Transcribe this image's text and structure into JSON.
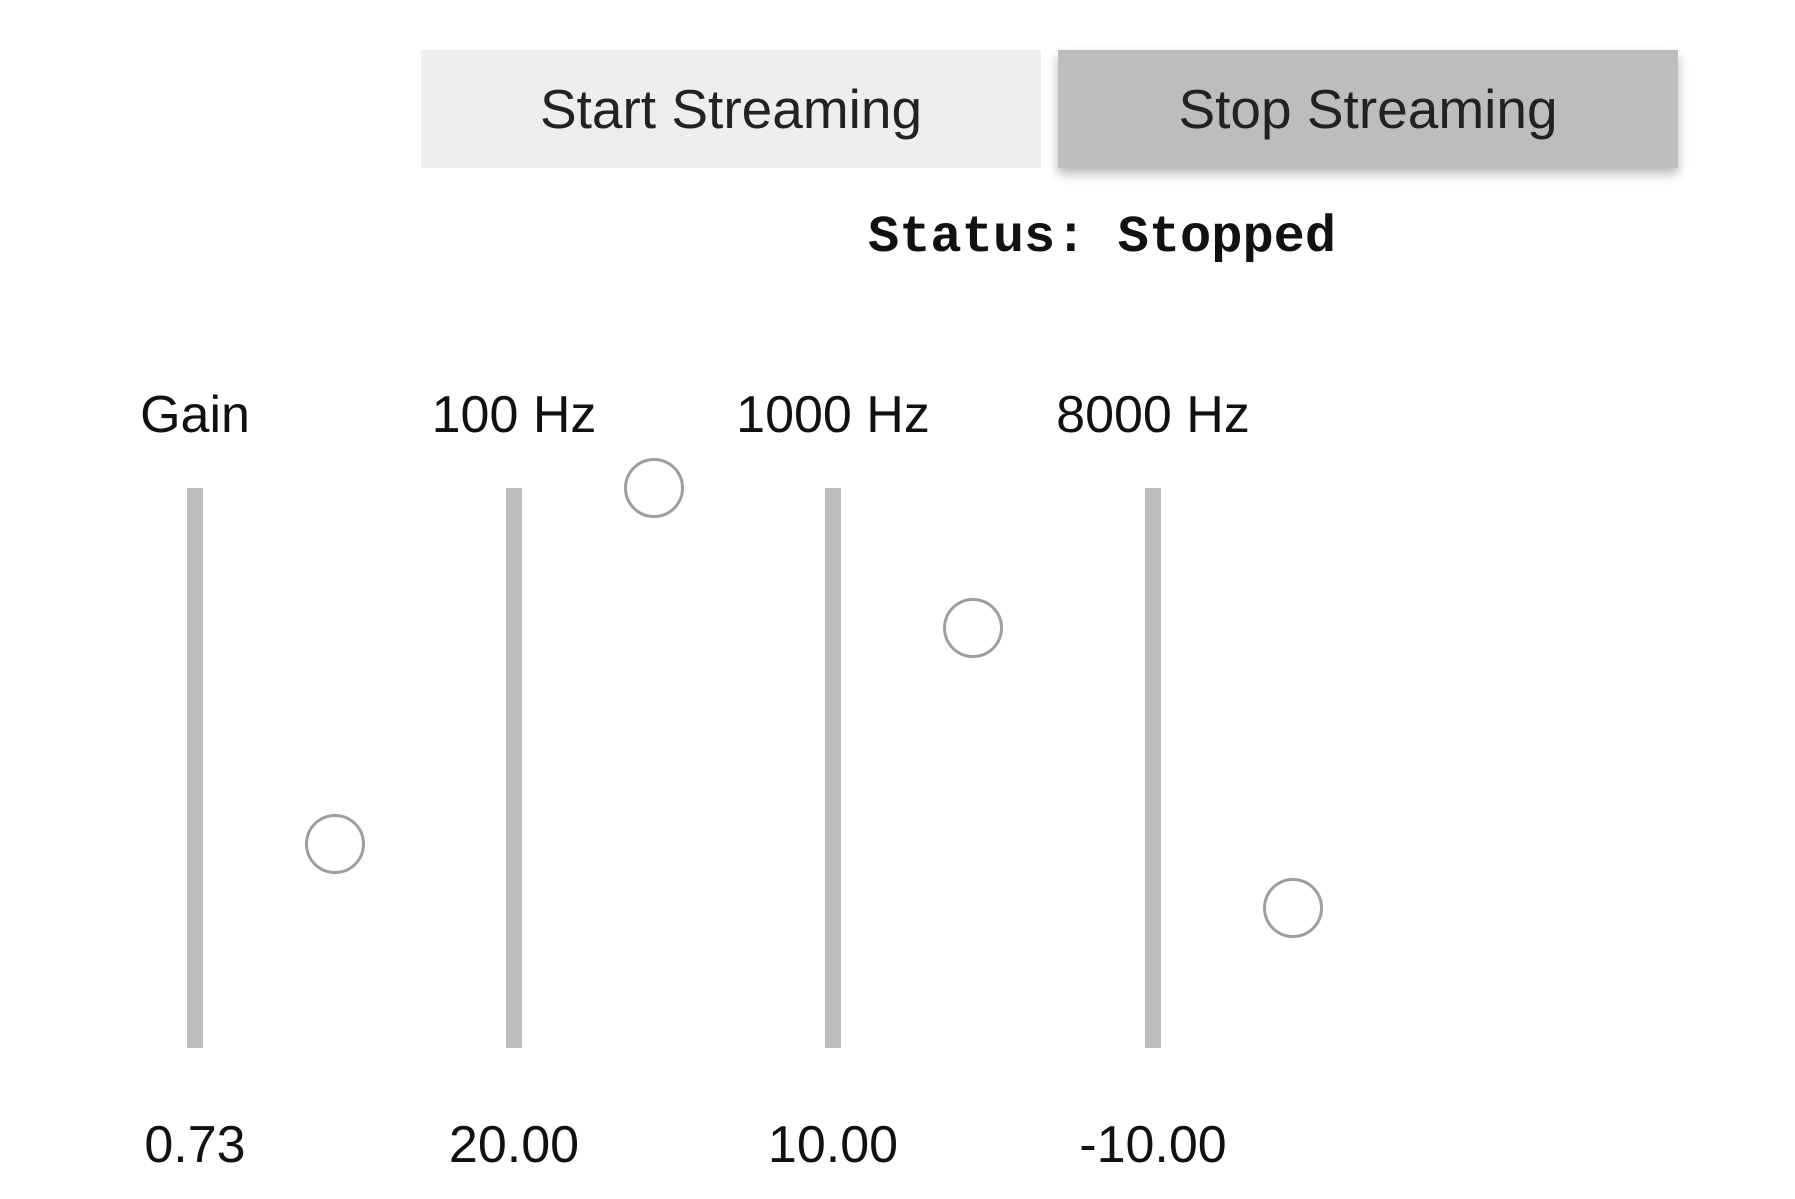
{
  "controls": {
    "start_label": "Start Streaming",
    "stop_label": "Stop Streaming"
  },
  "status": {
    "text": "Status: Stopped"
  },
  "sliders": [
    {
      "label": "Gain",
      "value_text": "0.73",
      "value": 0.73,
      "min": 0,
      "max": 2
    },
    {
      "label": "100 Hz",
      "value_text": "20.00",
      "value": 20,
      "min": -20,
      "max": 20
    },
    {
      "label": "1000 Hz",
      "value_text": "10.00",
      "value": 10,
      "min": -20,
      "max": 20
    },
    {
      "label": "8000 Hz",
      "value_text": "-10.00",
      "value": -10,
      "min": -20,
      "max": 20
    }
  ],
  "colors": {
    "start_bg": "#eeeeee",
    "stop_bg": "#bdbdbd",
    "track": "#bdbdbd",
    "thumb_border": "#9e9e9e"
  }
}
